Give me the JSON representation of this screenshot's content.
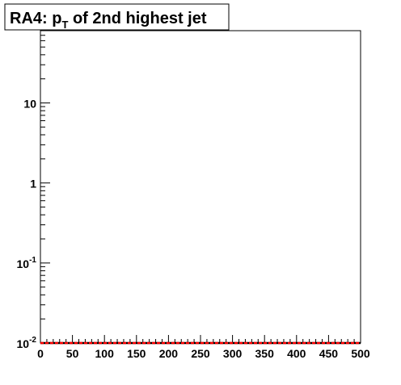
{
  "chart_data": {
    "type": "histogram",
    "title": {
      "main": "RA4: p",
      "subscript": "T",
      "rest": " of 2nd highest jet"
    },
    "xlabel": "",
    "ylabel": "",
    "x_range": [
      0,
      500
    ],
    "x_ticks": [
      "0",
      "50",
      "100",
      "150",
      "200",
      "250",
      "300",
      "350",
      "400",
      "450",
      "500"
    ],
    "y_scale": "log",
    "y_range": [
      0.01,
      80
    ],
    "y_ticks": [
      {
        "value": 0.01,
        "base": "10",
        "exp": "-2"
      },
      {
        "value": 0.1,
        "base": "10",
        "exp": "-1"
      },
      {
        "value": 1,
        "base": "1",
        "exp": ""
      },
      {
        "value": 10,
        "base": "10",
        "exp": ""
      }
    ],
    "bin_width": 10,
    "x": [
      0,
      10,
      20,
      30,
      40,
      50,
      60,
      70,
      80,
      90,
      100,
      110,
      120,
      130,
      140,
      150,
      160,
      170,
      180,
      190,
      200,
      210,
      220,
      230,
      240,
      250,
      260,
      270,
      280,
      290,
      300,
      310,
      320,
      330,
      340,
      350,
      360,
      370,
      380,
      390,
      400,
      410,
      420,
      430,
      440,
      450,
      460,
      470,
      480,
      490
    ],
    "series": [
      {
        "color": "#000000",
        "style": "solid",
        "values": [
          0.01,
          0.01,
          0.01,
          0.01,
          0.01,
          0.01,
          0.01,
          0.01,
          0.01,
          0.01,
          0.01,
          0.01,
          0.01,
          0.01,
          0.01,
          0.01,
          0.01,
          0.01,
          0.01,
          0.01,
          0.01,
          0.01,
          0.01,
          0.01,
          0.01,
          0.01,
          0.01,
          0.01,
          0.01,
          0.01,
          0.01,
          0.01,
          0.01,
          0.01,
          0.01,
          0.01,
          0.01,
          0.01,
          0.01,
          0.01,
          0.01,
          0.01,
          0.01,
          0.01,
          0.01,
          0.01,
          0.01,
          0.01,
          0.01,
          0.01
        ]
      },
      {
        "color": "#ff0000",
        "style": "dashed",
        "values": [
          0.01,
          0.01,
          0.01,
          0.01,
          0.01,
          0.01,
          0.01,
          0.01,
          0.01,
          0.01,
          0.01,
          0.01,
          0.01,
          0.01,
          0.01,
          0.01,
          0.01,
          0.01,
          0.01,
          0.01,
          0.01,
          0.01,
          0.01,
          0.01,
          0.01,
          0.01,
          0.01,
          0.01,
          0.01,
          0.01,
          0.01,
          0.01,
          0.01,
          0.01,
          0.01,
          0.01,
          0.01,
          0.01,
          0.01,
          0.01,
          0.01,
          0.01,
          0.01,
          0.01,
          0.01,
          0.01,
          0.01,
          0.01,
          0.01,
          0.01
        ]
      }
    ]
  }
}
